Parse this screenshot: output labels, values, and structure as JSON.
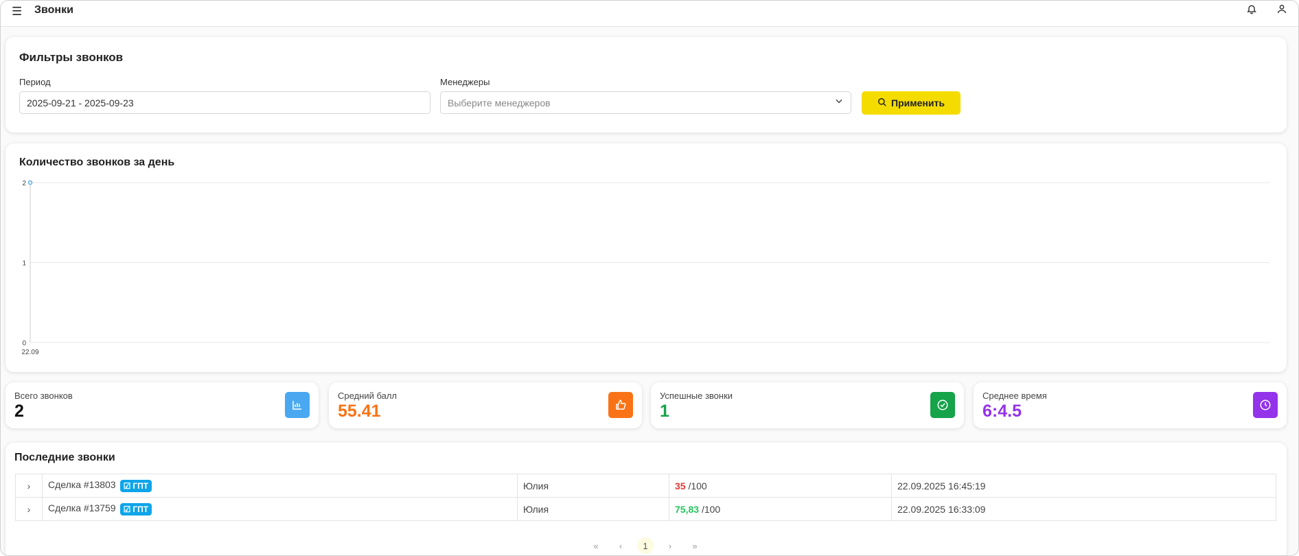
{
  "header": {
    "title": "Звонки",
    "menu_icon": "menu-icon",
    "bell_icon": "bell-icon",
    "user_icon": "user-icon"
  },
  "filters": {
    "title": "Фильтры звонков",
    "period_label": "Период",
    "period_value": "2025-09-21 - 2025-09-23",
    "managers_label": "Менеджеры",
    "managers_placeholder": "Выберите менеджеров",
    "apply_label": "Применить"
  },
  "chart_data": {
    "type": "line",
    "title": "Количество звонков за день",
    "categories": [
      "22.09"
    ],
    "values": [
      2
    ],
    "yticks": [
      "0",
      "1",
      "2"
    ],
    "ylim": [
      0,
      2
    ],
    "grid": true,
    "color": "#5aa9e6"
  },
  "stats": [
    {
      "title": "Всего звонков",
      "value": "2",
      "color": "#111111",
      "icon_color": "#4aa8f0",
      "icon": "bar-chart-icon"
    },
    {
      "title": "Средний балл",
      "value": "55.41",
      "color": "#f97316",
      "icon_color": "#f97316",
      "icon": "thumbs-up-icon"
    },
    {
      "title": "Успешные звонки",
      "value": "1",
      "color": "#16a34a",
      "icon_color": "#16a34a",
      "icon": "check-circle-icon"
    },
    {
      "title": "Среднее время",
      "value": "6:4.5",
      "color": "#9333ea",
      "icon_color": "#9333ea",
      "icon": "clock-icon"
    }
  ],
  "recent": {
    "title": "Последние звонки",
    "badge": "ГПТ",
    "rows": [
      {
        "deal": "Сделка #13803",
        "manager": "Юлия",
        "score": "35",
        "score_color": "#e53935",
        "max": "/100",
        "date": "22.09.2025 16:45:19"
      },
      {
        "deal": "Сделка #13759",
        "manager": "Юлия",
        "score": "75,83",
        "score_color": "#22c55e",
        "max": "/100",
        "date": "22.09.2025 16:33:09"
      }
    ]
  },
  "pagination": {
    "first": "«",
    "prev": "‹",
    "current": "1",
    "next": "›",
    "last": "»"
  }
}
